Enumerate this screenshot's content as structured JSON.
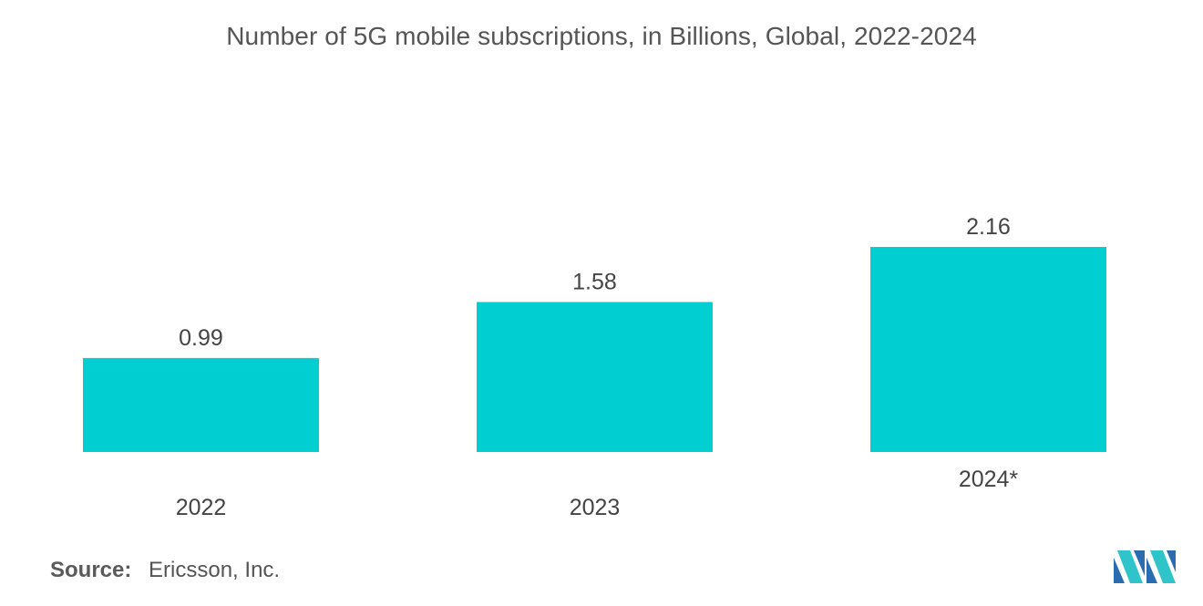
{
  "chart_data": {
    "type": "bar",
    "title": "Number of 5G mobile subscriptions, in Billions, Global, 2022-2024",
    "categories": [
      "2022",
      "2023",
      "2024*"
    ],
    "values": [
      0.99,
      1.58,
      2.16
    ],
    "value_labels": [
      "0.99",
      "1.58",
      "2.16"
    ],
    "xlabel": "",
    "ylabel": "",
    "ylim": [
      0,
      2.16
    ],
    "grid": false,
    "legend": "none",
    "bar_color": "#00CED1"
  },
  "source": {
    "label": "Source:",
    "text": "Ericsson, Inc."
  },
  "logo": {
    "icon": "mordor-intelligence-logo-icon",
    "colors": [
      "#2B6CB0",
      "#2EC4C9"
    ]
  },
  "colors": {
    "title_text": "#555555",
    "label_text": "#444444"
  }
}
